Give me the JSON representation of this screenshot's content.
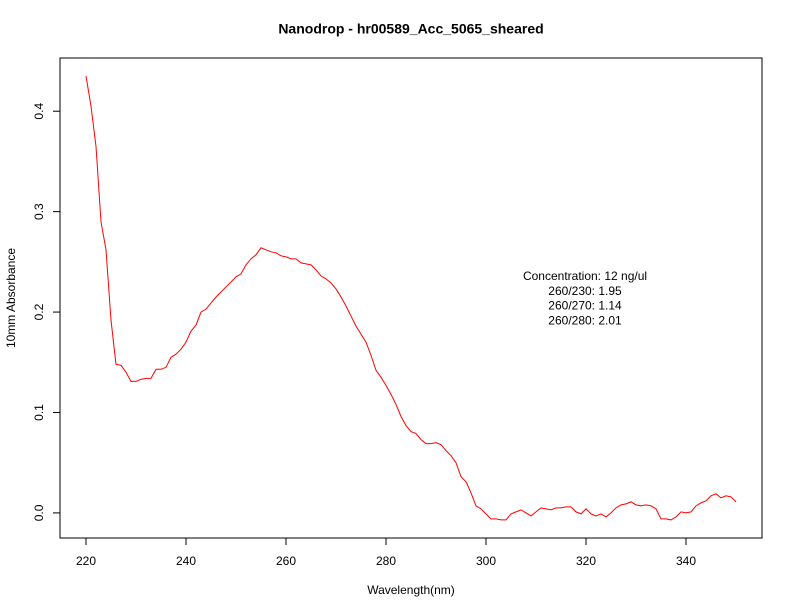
{
  "chart_data": {
    "type": "line",
    "title": "Nanodrop - hr00589_Acc_5065_sheared",
    "x_label": "Wavelength(nm)",
    "y_label": "10mm Absorbance",
    "annotations": [
      "Concentration: 12 ng/ul",
      "260/230: 1.95",
      "260/270: 1.14",
      "260/280: 2.01"
    ],
    "xlim": [
      214.8,
      355.2
    ],
    "ylim": [
      -0.025,
      0.453
    ],
    "xticks": [
      220,
      240,
      260,
      280,
      300,
      320,
      340
    ],
    "yticks": [
      {
        "value": 0,
        "label": "0.0"
      },
      0.1,
      0.2,
      0.3,
      0.4
    ],
    "x": [
      220,
      221,
      222,
      223,
      224,
      225,
      226,
      227,
      228,
      229,
      230,
      231,
      232,
      233,
      234,
      235,
      236,
      237,
      238,
      239,
      240,
      241,
      242,
      243,
      244,
      245,
      246,
      247,
      248,
      249,
      250,
      251,
      252,
      253,
      254,
      255,
      256,
      257,
      258,
      259,
      260,
      261,
      262,
      263,
      264,
      265,
      266,
      267,
      268,
      269,
      270,
      271,
      272,
      273,
      274,
      275,
      276,
      277,
      278,
      279,
      280,
      281,
      282,
      283,
      284,
      285,
      286,
      287,
      288,
      289,
      290,
      291,
      292,
      293,
      294,
      295,
      296,
      297,
      298,
      299,
      300,
      301,
      302,
      303,
      304,
      305,
      306,
      307,
      308,
      309,
      310,
      311,
      312,
      313,
      314,
      315,
      316,
      317,
      318,
      319,
      320,
      321,
      322,
      323,
      324,
      325,
      326,
      327,
      328,
      329,
      330,
      331,
      332,
      333,
      334,
      335,
      336,
      337,
      338,
      339,
      340,
      341,
      342,
      343,
      344,
      345,
      346,
      347,
      348,
      349,
      350
    ],
    "series": [
      {
        "name": "absorbance",
        "color": "#ff0000",
        "values": [
          0.435,
          0.405,
          0.365,
          0.29,
          0.262,
          0.192,
          0.148,
          0.147,
          0.14,
          0.131,
          0.131,
          0.133,
          0.134,
          0.134,
          0.143,
          0.143,
          0.145,
          0.155,
          0.158,
          0.163,
          0.17,
          0.181,
          0.187,
          0.2,
          0.203,
          0.209,
          0.215,
          0.22,
          0.225,
          0.23,
          0.235,
          0.238,
          0.247,
          0.253,
          0.257,
          0.264,
          0.262,
          0.26,
          0.259,
          0.256,
          0.255,
          0.253,
          0.253,
          0.249,
          0.248,
          0.247,
          0.242,
          0.236,
          0.233,
          0.229,
          0.223,
          0.215,
          0.206,
          0.196,
          0.186,
          0.178,
          0.17,
          0.157,
          0.142,
          0.135,
          0.127,
          0.118,
          0.108,
          0.096,
          0.087,
          0.081,
          0.079,
          0.073,
          0.069,
          0.069,
          0.07,
          0.068,
          0.062,
          0.057,
          0.05,
          0.036,
          0.031,
          0.02,
          0.007,
          0.004,
          -0.001,
          -0.006,
          -0.006,
          -0.007,
          -0.007,
          -0.001,
          0.001,
          0.003,
          0.0,
          -0.003,
          0.001,
          0.005,
          0.004,
          0.003,
          0.005,
          0.005,
          0.006,
          0.006,
          0.001,
          -0.001,
          0.004,
          -0.001,
          -0.003,
          -0.001,
          -0.004,
          0.0,
          0.005,
          0.008,
          0.009,
          0.011,
          0.008,
          0.007,
          0.008,
          0.007,
          0.004,
          -0.006,
          -0.006,
          -0.007,
          -0.004,
          0.001,
          0.0,
          0.001,
          0.007,
          0.01,
          0.012,
          0.017,
          0.019,
          0.015,
          0.017,
          0.016,
          0.011
        ]
      }
    ]
  }
}
